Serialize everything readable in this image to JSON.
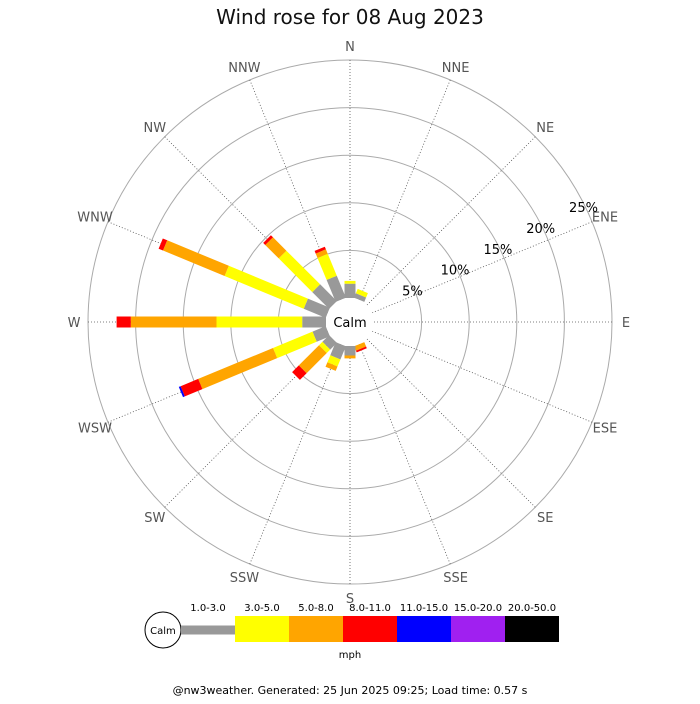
{
  "chart_data": {
    "type": "windrose",
    "title": "Wind rose for 08 Aug 2023",
    "directions": [
      "N",
      "NNE",
      "NE",
      "ENE",
      "E",
      "ESE",
      "SE",
      "SSE",
      "S",
      "SSW",
      "SW",
      "WSW",
      "W",
      "WNW",
      "NW",
      "NNW"
    ],
    "ring_labels": [
      "5%",
      "10%",
      "15%",
      "20%",
      "25%"
    ],
    "center_label": "Calm",
    "speed_bins": [
      {
        "label": "1.0-3.0",
        "color": "#999999"
      },
      {
        "label": "3.0-5.0",
        "color": "#ffff00"
      },
      {
        "label": "5.0-8.0",
        "color": "#ffa500"
      },
      {
        "label": "8.0-11.0",
        "color": "#ff0000"
      },
      {
        "label": "11.0-15.0",
        "color": "#0000ff"
      },
      {
        "label": "15.0-20.0",
        "color": "#a020f0"
      },
      {
        "label": "20.0-50.0",
        "color": "#000000"
      }
    ],
    "series_by_direction": [
      {
        "dir": "N",
        "values": [
          1.5,
          0.3,
          0,
          0,
          0,
          0,
          0
        ]
      },
      {
        "dir": "NNE",
        "values": [
          0.5,
          0.5,
          0,
          0,
          0,
          0,
          0
        ]
      },
      {
        "dir": "NE",
        "values": [
          0,
          0,
          0,
          0,
          0,
          0,
          0
        ]
      },
      {
        "dir": "ENE",
        "values": [
          0,
          0,
          0,
          0,
          0,
          0,
          0
        ]
      },
      {
        "dir": "E",
        "values": [
          0,
          0,
          0,
          0,
          0,
          0,
          0
        ]
      },
      {
        "dir": "ESE",
        "values": [
          0,
          0,
          0,
          0,
          0,
          0,
          0
        ]
      },
      {
        "dir": "SE",
        "values": [
          0,
          0,
          0,
          0,
          0,
          0,
          0
        ]
      },
      {
        "dir": "SSE",
        "values": [
          0,
          0,
          0.5,
          0.2,
          0,
          0,
          0
        ]
      },
      {
        "dir": "S",
        "values": [
          1.0,
          0,
          0.3,
          0,
          0,
          0,
          0
        ]
      },
      {
        "dir": "SSW",
        "values": [
          1.5,
          0.8,
          0.5,
          0,
          0,
          0,
          0
        ]
      },
      {
        "dir": "SW",
        "values": [
          1.0,
          0.5,
          3.0,
          1.0,
          0,
          0,
          0
        ]
      },
      {
        "dir": "WSW",
        "values": [
          1.5,
          4.5,
          8.5,
          2.0,
          0.2,
          0,
          0
        ]
      },
      {
        "dir": "W",
        "values": [
          2.5,
          9.0,
          9.0,
          1.5,
          0,
          0,
          0
        ]
      },
      {
        "dir": "WNW",
        "values": [
          2.5,
          9.0,
          7.0,
          0.5,
          0,
          0,
          0
        ]
      },
      {
        "dir": "NW",
        "values": [
          2.5,
          5.0,
          2.0,
          0.3,
          0,
          0,
          0
        ]
      },
      {
        "dir": "NNW",
        "values": [
          2.5,
          2.5,
          0.5,
          0.3,
          0,
          0,
          0
        ]
      }
    ],
    "max_percent": 25,
    "grid": true
  },
  "legend": {
    "calm_label": "Calm",
    "unit_label": "mph"
  },
  "footer": "@nw3weather. Generated: 25 Jun 2025 09:25; Load time: 0.57 s"
}
